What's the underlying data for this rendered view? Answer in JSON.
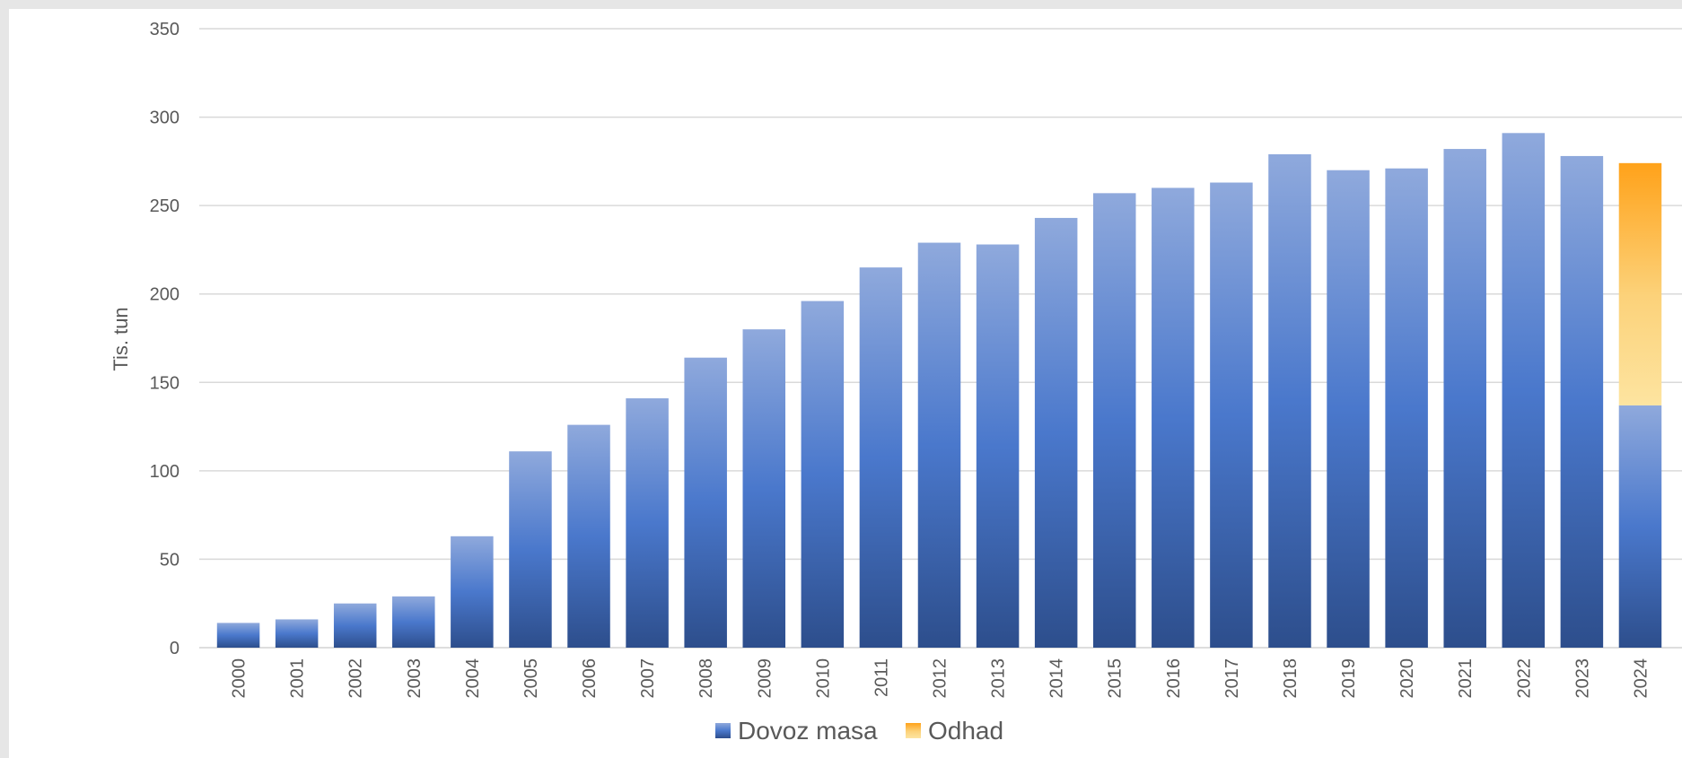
{
  "chart_data": {
    "type": "bar",
    "title": "",
    "xlabel": "",
    "ylabel": "Tis. tun",
    "ylim": [
      0,
      350
    ],
    "yticks": [
      0,
      50,
      100,
      150,
      200,
      250,
      300,
      350
    ],
    "grid": true,
    "legend_position": "bottom",
    "stacked": true,
    "categories": [
      "2000",
      "2001",
      "2002",
      "2003",
      "2004",
      "2005",
      "2006",
      "2007",
      "2008",
      "2009",
      "2010",
      "2011",
      "2012",
      "2013",
      "2014",
      "2015",
      "2016",
      "2017",
      "2018",
      "2019",
      "2020",
      "2021",
      "2022",
      "2023",
      "2024"
    ],
    "series": [
      {
        "name": "Dovoz masa",
        "color": "#4472c4",
        "values": [
          14,
          16,
          25,
          29,
          63,
          111,
          126,
          141,
          164,
          180,
          196,
          215,
          229,
          228,
          243,
          257,
          260,
          263,
          279,
          270,
          271,
          282,
          291,
          278,
          137
        ]
      },
      {
        "name": "Odhad",
        "color": "#ffa500",
        "values": [
          0,
          0,
          0,
          0,
          0,
          0,
          0,
          0,
          0,
          0,
          0,
          0,
          0,
          0,
          0,
          0,
          0,
          0,
          0,
          0,
          0,
          0,
          0,
          0,
          137
        ]
      }
    ]
  }
}
